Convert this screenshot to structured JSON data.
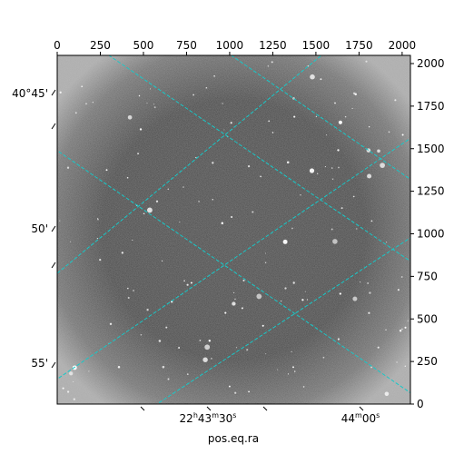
{
  "chart_data": {
    "type": "image",
    "title": "",
    "xlabel": "pos.eq.ra",
    "ylabel": "",
    "pixel_axes": {
      "x": {
        "range": [
          0,
          2048
        ],
        "ticks": [
          0,
          250,
          500,
          750,
          1000,
          1250,
          1500,
          1750,
          2000
        ],
        "tick_labels": [
          "0",
          "250",
          "500",
          "750",
          "1000",
          "1250",
          "1500",
          "1750",
          "2000"
        ],
        "placement": "top"
      },
      "y": {
        "range": [
          0,
          2048
        ],
        "ticks": [
          0,
          250,
          500,
          750,
          1000,
          1250,
          1500,
          1750,
          2000
        ],
        "tick_labels": [
          "0",
          "250",
          "500",
          "750",
          "1000",
          "1250",
          "1500",
          "1750",
          "2000"
        ],
        "placement": "right"
      }
    },
    "world_axes": {
      "ra_ticks": [
        {
          "label_main": "22",
          "label_h": "h",
          "label_m": "43",
          "label_m_sup": "m",
          "label_s": "30",
          "label_s_sup": "s",
          "value_deg": 340.875
        },
        {
          "label_main": "44",
          "label_m_sup": "m",
          "label_s": "00",
          "label_s_sup": "s",
          "value_deg": 341.0
        }
      ],
      "dec_ticks": [
        {
          "label": "40°45'",
          "value_deg": 40.75
        },
        {
          "label": "50'",
          "value_deg": 40.8333
        },
        {
          "label": "55'",
          "value_deg": 40.9167
        }
      ]
    },
    "grid": true,
    "grid_color": "#18c8c8",
    "colormap": "gray",
    "image_background": "#3a3a3a"
  }
}
